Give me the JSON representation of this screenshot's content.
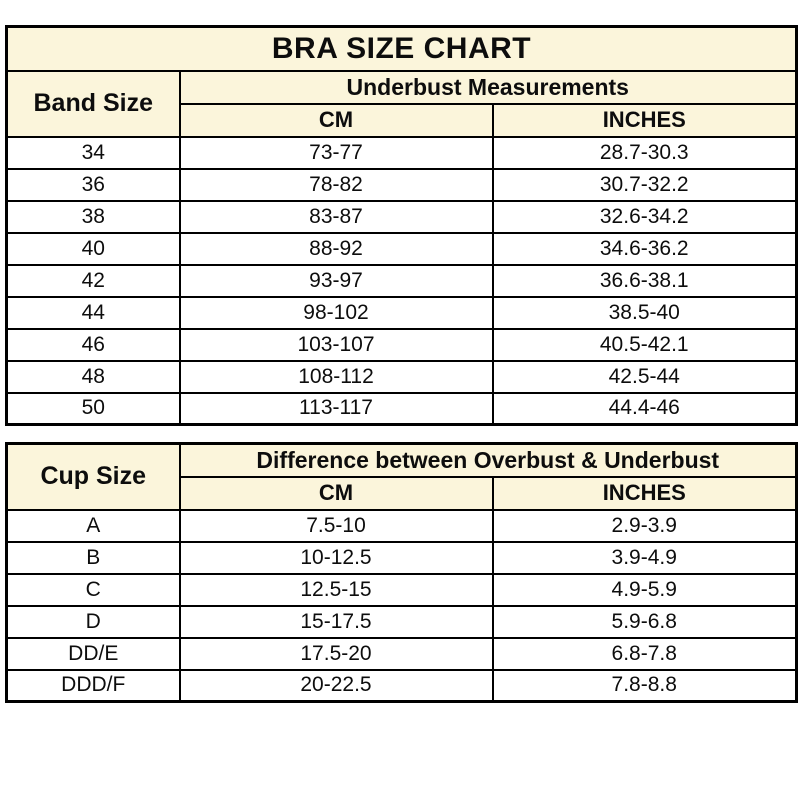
{
  "title": "BRA SIZE CHART",
  "colors": {
    "header_bg": "#FBF5DB",
    "border": "#000000",
    "text": "#0d0d0d",
    "row_bg": "#ffffff"
  },
  "band_table": {
    "row_header": "Band Size",
    "group_header": "Underbust Measurements",
    "col_headers": [
      "CM",
      "INCHES"
    ],
    "rows": [
      {
        "band": "34",
        "cm": "73-77",
        "inches": "28.7-30.3"
      },
      {
        "band": "36",
        "cm": "78-82",
        "inches": "30.7-32.2"
      },
      {
        "band": "38",
        "cm": "83-87",
        "inches": "32.6-34.2"
      },
      {
        "band": "40",
        "cm": "88-92",
        "inches": "34.6-36.2"
      },
      {
        "band": "42",
        "cm": "93-97",
        "inches": "36.6-38.1"
      },
      {
        "band": "44",
        "cm": "98-102",
        "inches": "38.5-40"
      },
      {
        "band": "46",
        "cm": "103-107",
        "inches": "40.5-42.1"
      },
      {
        "band": "48",
        "cm": "108-112",
        "inches": "42.5-44"
      },
      {
        "band": "50",
        "cm": "113-117",
        "inches": "44.4-46"
      }
    ]
  },
  "cup_table": {
    "row_header": "Cup Size",
    "group_header": "Difference between Overbust & Underbust",
    "col_headers": [
      "CM",
      "INCHES"
    ],
    "rows": [
      {
        "cup": "A",
        "cm": "7.5-10",
        "inches": "2.9-3.9"
      },
      {
        "cup": "B",
        "cm": "10-12.5",
        "inches": "3.9-4.9"
      },
      {
        "cup": "C",
        "cm": "12.5-15",
        "inches": "4.9-5.9"
      },
      {
        "cup": "D",
        "cm": "15-17.5",
        "inches": "5.9-6.8"
      },
      {
        "cup": "DD/E",
        "cm": "17.5-20",
        "inches": "6.8-7.8"
      },
      {
        "cup": "DDD/F",
        "cm": "20-22.5",
        "inches": "7.8-8.8"
      }
    ]
  }
}
